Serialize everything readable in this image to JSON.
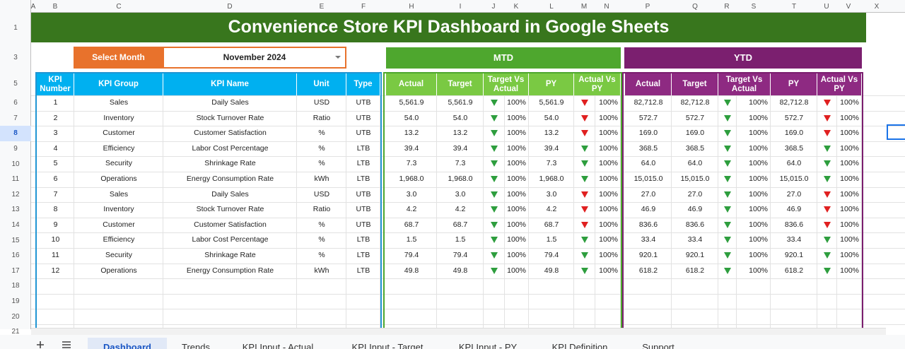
{
  "column_letters": [
    "A",
    "B",
    "C",
    "D",
    "E",
    "F",
    "H",
    "I",
    "J",
    "K",
    "L",
    "M",
    "N",
    "P",
    "Q",
    "R",
    "S",
    "T",
    "U",
    "V",
    "X"
  ],
  "row_numbers": [
    "1",
    "3",
    "5",
    "6",
    "7",
    "8",
    "9",
    "10",
    "11",
    "12",
    "13",
    "14",
    "15",
    "16",
    "17",
    "18",
    "19",
    "20",
    "21"
  ],
  "title": "Convenience Store KPI Dashboard in Google Sheets",
  "select_month": {
    "label": "Select Month",
    "value": "November 2024"
  },
  "mtd_label": "MTD",
  "ytd_label": "YTD",
  "kpi_headers": [
    "KPI Number",
    "KPI Group",
    "KPI Name",
    "Unit",
    "Type"
  ],
  "kpi_rows": [
    [
      "1",
      "Sales",
      "Daily Sales",
      "USD",
      "UTB"
    ],
    [
      "2",
      "Inventory",
      "Stock Turnover Rate",
      "Ratio",
      "UTB"
    ],
    [
      "3",
      "Customer",
      "Customer Satisfaction",
      "%",
      "UTB"
    ],
    [
      "4",
      "Efficiency",
      "Labor Cost Percentage",
      "%",
      "LTB"
    ],
    [
      "5",
      "Security",
      "Shrinkage Rate",
      "%",
      "LTB"
    ],
    [
      "6",
      "Operations",
      "Energy Consumption Rate",
      "kWh",
      "LTB"
    ],
    [
      "7",
      "Sales",
      "Daily Sales",
      "USD",
      "UTB"
    ],
    [
      "8",
      "Inventory",
      "Stock Turnover Rate",
      "Ratio",
      "UTB"
    ],
    [
      "9",
      "Customer",
      "Customer Satisfaction",
      "%",
      "UTB"
    ],
    [
      "10",
      "Efficiency",
      "Labor Cost Percentage",
      "%",
      "LTB"
    ],
    [
      "11",
      "Security",
      "Shrinkage Rate",
      "%",
      "LTB"
    ],
    [
      "12",
      "Operations",
      "Energy Consumption Rate",
      "kWh",
      "LTB"
    ]
  ],
  "period_headers": [
    "Actual",
    "Target",
    "Target Vs Actual",
    "PY",
    "Actual Vs PY"
  ],
  "mtd_rows": [
    [
      "5,561.9",
      "5,561.9",
      "#2e9e3e",
      "100%",
      "5,561.9",
      "#e02020",
      "100%"
    ],
    [
      "54.0",
      "54.0",
      "#2e9e3e",
      "100%",
      "54.0",
      "#e02020",
      "100%"
    ],
    [
      "13.2",
      "13.2",
      "#2e9e3e",
      "100%",
      "13.2",
      "#e02020",
      "100%"
    ],
    [
      "39.4",
      "39.4",
      "#2e9e3e",
      "100%",
      "39.4",
      "#2e9e3e",
      "100%"
    ],
    [
      "7.3",
      "7.3",
      "#2e9e3e",
      "100%",
      "7.3",
      "#2e9e3e",
      "100%"
    ],
    [
      "1,968.0",
      "1,968.0",
      "#2e9e3e",
      "100%",
      "1,968.0",
      "#2e9e3e",
      "100%"
    ],
    [
      "3.0",
      "3.0",
      "#2e9e3e",
      "100%",
      "3.0",
      "#e02020",
      "100%"
    ],
    [
      "4.2",
      "4.2",
      "#2e9e3e",
      "100%",
      "4.2",
      "#e02020",
      "100%"
    ],
    [
      "68.7",
      "68.7",
      "#2e9e3e",
      "100%",
      "68.7",
      "#e02020",
      "100%"
    ],
    [
      "1.5",
      "1.5",
      "#2e9e3e",
      "100%",
      "1.5",
      "#2e9e3e",
      "100%"
    ],
    [
      "79.4",
      "79.4",
      "#2e9e3e",
      "100%",
      "79.4",
      "#2e9e3e",
      "100%"
    ],
    [
      "49.8",
      "49.8",
      "#2e9e3e",
      "100%",
      "49.8",
      "#2e9e3e",
      "100%"
    ]
  ],
  "ytd_rows": [
    [
      "82,712.8",
      "82,712.8",
      "#2e9e3e",
      "100%",
      "82,712.8",
      "#e02020",
      "100%"
    ],
    [
      "572.7",
      "572.7",
      "#2e9e3e",
      "100%",
      "572.7",
      "#e02020",
      "100%"
    ],
    [
      "169.0",
      "169.0",
      "#2e9e3e",
      "100%",
      "169.0",
      "#e02020",
      "100%"
    ],
    [
      "368.5",
      "368.5",
      "#2e9e3e",
      "100%",
      "368.5",
      "#2e9e3e",
      "100%"
    ],
    [
      "64.0",
      "64.0",
      "#2e9e3e",
      "100%",
      "64.0",
      "#2e9e3e",
      "100%"
    ],
    [
      "15,015.0",
      "15,015.0",
      "#2e9e3e",
      "100%",
      "15,015.0",
      "#2e9e3e",
      "100%"
    ],
    [
      "27.0",
      "27.0",
      "#2e9e3e",
      "100%",
      "27.0",
      "#e02020",
      "100%"
    ],
    [
      "46.9",
      "46.9",
      "#2e9e3e",
      "100%",
      "46.9",
      "#e02020",
      "100%"
    ],
    [
      "836.6",
      "836.6",
      "#2e9e3e",
      "100%",
      "836.6",
      "#e02020",
      "100%"
    ],
    [
      "33.4",
      "33.4",
      "#2e9e3e",
      "100%",
      "33.4",
      "#2e9e3e",
      "100%"
    ],
    [
      "920.1",
      "920.1",
      "#2e9e3e",
      "100%",
      "920.1",
      "#2e9e3e",
      "100%"
    ],
    [
      "618.2",
      "618.2",
      "#2e9e3e",
      "100%",
      "618.2",
      "#2e9e3e",
      "100%"
    ]
  ],
  "sheet_tabs": [
    "Dashboard",
    "Trends",
    "KPI Input - Actual",
    "KPI Input - Target",
    "KPI Input - PY",
    "KPI Definition",
    "Support"
  ]
}
